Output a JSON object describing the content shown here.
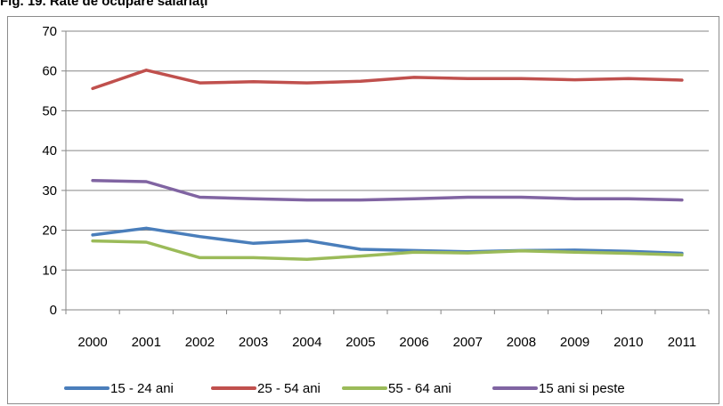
{
  "caption": "Fig. 19. Rate de ocupare salariaţi",
  "chart_data": {
    "type": "line",
    "title": "",
    "xlabel": "",
    "ylabel": "",
    "categories": [
      "2000",
      "2001",
      "2002",
      "2003",
      "2004",
      "2005",
      "2006",
      "2007",
      "2008",
      "2009",
      "2010",
      "2011"
    ],
    "ylim": [
      0,
      70
    ],
    "yticks": [
      0,
      10,
      20,
      30,
      40,
      50,
      60,
      70
    ],
    "grid": true,
    "legend_position": "bottom",
    "series": [
      {
        "name": "15 - 24 ani",
        "color": "#4a7ebb",
        "values": [
          18.8,
          20.5,
          18.4,
          16.7,
          17.4,
          15.2,
          14.9,
          14.6,
          14.9,
          15.0,
          14.7,
          14.2
        ]
      },
      {
        "name": "25 - 54 ani",
        "color": "#c0504d",
        "values": [
          55.6,
          60.2,
          57.0,
          57.3,
          57.0,
          57.4,
          58.4,
          58.1,
          58.1,
          57.8,
          58.1,
          57.7
        ]
      },
      {
        "name": "55 - 64 ani",
        "color": "#9bbb59",
        "values": [
          17.3,
          17.0,
          13.1,
          13.1,
          12.7,
          13.5,
          14.5,
          14.3,
          14.8,
          14.5,
          14.2,
          13.8
        ]
      },
      {
        "name": "15 ani si peste",
        "color": "#8064a2",
        "values": [
          32.5,
          32.2,
          28.3,
          27.9,
          27.6,
          27.6,
          27.9,
          28.3,
          28.3,
          27.9,
          27.9,
          27.6
        ]
      }
    ]
  }
}
